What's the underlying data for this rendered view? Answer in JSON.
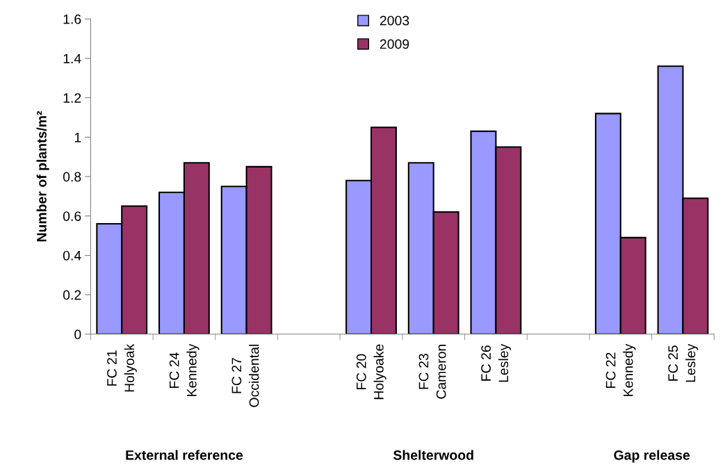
{
  "chart_data": {
    "type": "bar",
    "ylabel": "Number of plants/m²",
    "categories": [
      "FC 21\nHolyoak",
      "FC 24\nKennedy",
      "FC 27\nOccidental",
      null,
      "FC 20\nHolyoake",
      "FC 23\nCameron",
      "FC 26\nLesley",
      null,
      "FC 22\nKennedy",
      "FC 25\nLesley"
    ],
    "series": [
      {
        "name": "2003",
        "color": "#9999ff",
        "values": [
          0.56,
          0.72,
          0.75,
          null,
          0.78,
          0.87,
          1.03,
          null,
          1.12,
          1.36
        ]
      },
      {
        "name": "2009",
        "color": "#993366",
        "values": [
          0.65,
          0.87,
          0.85,
          null,
          1.05,
          0.62,
          0.95,
          null,
          0.49,
          0.69
        ]
      }
    ],
    "ylim": [
      0,
      1.6
    ],
    "yticks": [
      0,
      0.2,
      0.4,
      0.6,
      0.8,
      1,
      1.2,
      1.4,
      1.6
    ],
    "annotations": [
      "External reference",
      "Shelterwood",
      "Gap release"
    ],
    "legend": "top",
    "grid": false
  }
}
